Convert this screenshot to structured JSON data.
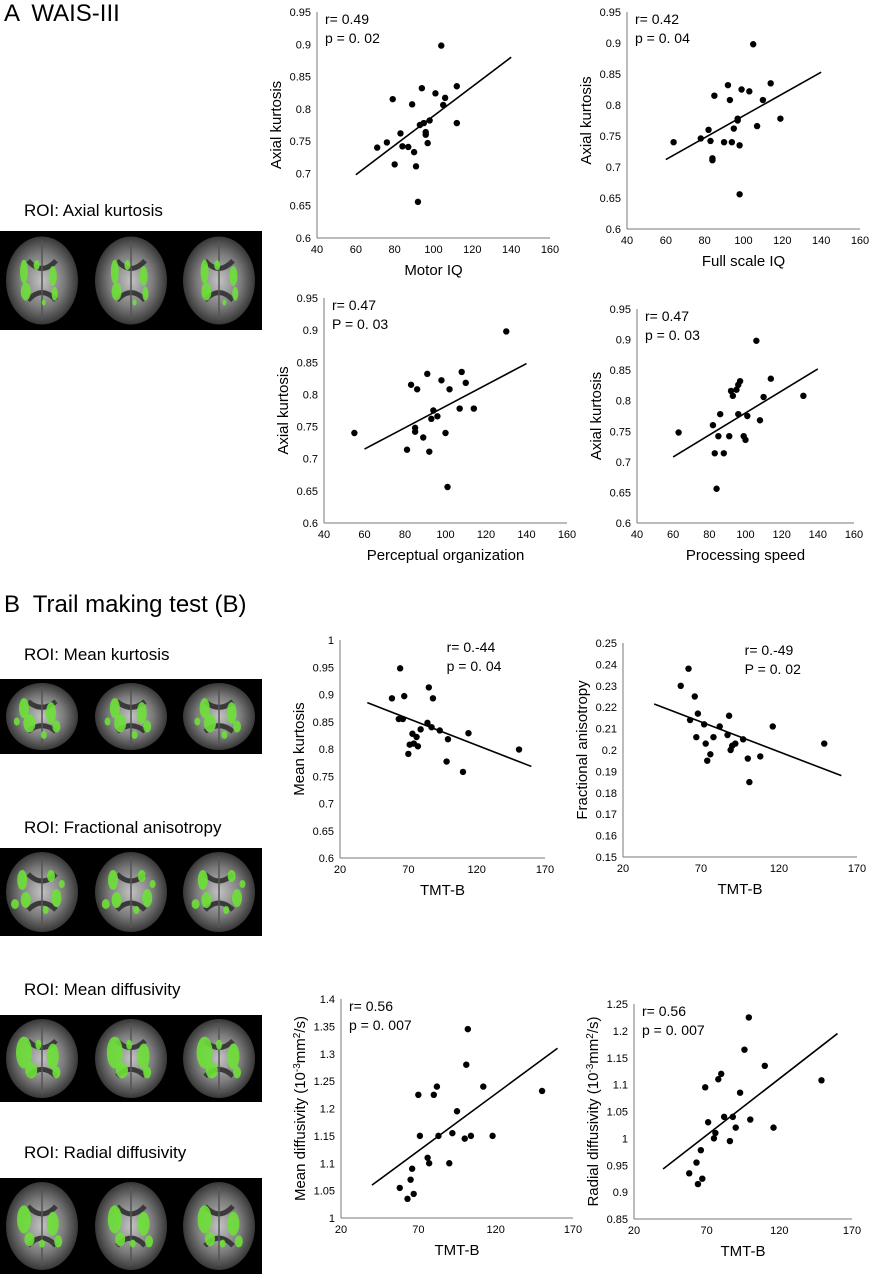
{
  "sections": {
    "a": {
      "letter": "A",
      "title": "WAIS-III"
    },
    "b": {
      "letter": "B",
      "title": "Trail making test (B)"
    }
  },
  "roi_labels": {
    "axial_kurtosis": "ROI: Axial kurtosis",
    "mean_kurtosis": "ROI: Mean kurtosis",
    "fractional_anisotropy": "ROI: Fractional anisotropy",
    "mean_diffusivity": "ROI: Mean diffusivity",
    "radial_diffusivity": "ROI: Radial diffusivity"
  },
  "colors": {
    "point": "#000000",
    "line": "#000000",
    "roi_overlay": "#6ee03a",
    "brain_background": "#000000"
  },
  "chart_data": [
    {
      "id": "motor_iq",
      "type": "scatter",
      "xlabel": "Motor IQ",
      "ylabel": "Axial kurtosis",
      "stat_r": "r= 0.49",
      "stat_p": "p = 0. 02",
      "xlim": [
        40,
        160
      ],
      "ylim": [
        0.6,
        0.95
      ],
      "xticks": [
        40,
        60,
        80,
        100,
        120,
        140,
        160
      ],
      "yticks": [
        0.6,
        0.65,
        0.7,
        0.75,
        0.8,
        0.85,
        0.9,
        0.95
      ],
      "trendline": [
        [
          60,
          0.698
        ],
        [
          140,
          0.88
        ]
      ],
      "points": [
        [
          71,
          0.74
        ],
        [
          76,
          0.748
        ],
        [
          79,
          0.815
        ],
        [
          80,
          0.714
        ],
        [
          83,
          0.762
        ],
        [
          84,
          0.742
        ],
        [
          87,
          0.741
        ],
        [
          89,
          0.807
        ],
        [
          90,
          0.733
        ],
        [
          91,
          0.711
        ],
        [
          92,
          0.656
        ],
        [
          93,
          0.775
        ],
        [
          94,
          0.832
        ],
        [
          95,
          0.778
        ],
        [
          96,
          0.76
        ],
        [
          96,
          0.764
        ],
        [
          97,
          0.747
        ],
        [
          98,
          0.782
        ],
        [
          101,
          0.824
        ],
        [
          104,
          0.898
        ],
        [
          105,
          0.806
        ],
        [
          106,
          0.817
        ],
        [
          112,
          0.835
        ],
        [
          112,
          0.778
        ]
      ]
    },
    {
      "id": "full_scale_iq",
      "type": "scatter",
      "xlabel": "Full scale IQ",
      "ylabel": "Axial kurtosis",
      "stat_r": "r= 0.42",
      "stat_p": "p = 0. 04",
      "xlim": [
        40,
        160
      ],
      "ylim": [
        0.6,
        0.95
      ],
      "xticks": [
        40,
        60,
        80,
        100,
        120,
        140,
        160
      ],
      "yticks": [
        0.6,
        0.65,
        0.7,
        0.75,
        0.8,
        0.85,
        0.9,
        0.95
      ],
      "trendline": [
        [
          60,
          0.712
        ],
        [
          140,
          0.853
        ]
      ],
      "points": [
        [
          64,
          0.74
        ],
        [
          78,
          0.746
        ],
        [
          82,
          0.76
        ],
        [
          83,
          0.742
        ],
        [
          84,
          0.714
        ],
        [
          84,
          0.711
        ],
        [
          85,
          0.815
        ],
        [
          90,
          0.74
        ],
        [
          92,
          0.832
        ],
        [
          93,
          0.808
        ],
        [
          94,
          0.74
        ],
        [
          95,
          0.762
        ],
        [
          97,
          0.775
        ],
        [
          97,
          0.778
        ],
        [
          98,
          0.656
        ],
        [
          98,
          0.735
        ],
        [
          99,
          0.825
        ],
        [
          103,
          0.822
        ],
        [
          105,
          0.898
        ],
        [
          107,
          0.766
        ],
        [
          110,
          0.808
        ],
        [
          114,
          0.835
        ],
        [
          119,
          0.778
        ]
      ]
    },
    {
      "id": "perceptual_organization",
      "type": "scatter",
      "xlabel": "Perceptual organization",
      "ylabel": "Axial kurtosis",
      "stat_r": "r= 0.47",
      "stat_p": "P = 0. 03",
      "xlim": [
        40,
        160
      ],
      "ylim": [
        0.6,
        0.95
      ],
      "xticks": [
        40,
        60,
        80,
        100,
        120,
        140,
        160
      ],
      "yticks": [
        0.6,
        0.65,
        0.7,
        0.75,
        0.8,
        0.85,
        0.9,
        0.95
      ],
      "trendline": [
        [
          60,
          0.715
        ],
        [
          140,
          0.848
        ]
      ],
      "points": [
        [
          55,
          0.74
        ],
        [
          81,
          0.714
        ],
        [
          83,
          0.815
        ],
        [
          85,
          0.748
        ],
        [
          85,
          0.742
        ],
        [
          86,
          0.808
        ],
        [
          89,
          0.733
        ],
        [
          91,
          0.832
        ],
        [
          92,
          0.711
        ],
        [
          93,
          0.762
        ],
        [
          94,
          0.775
        ],
        [
          96,
          0.766
        ],
        [
          98,
          0.822
        ],
        [
          100,
          0.74
        ],
        [
          101,
          0.656
        ],
        [
          102,
          0.808
        ],
        [
          107,
          0.778
        ],
        [
          108,
          0.835
        ],
        [
          110,
          0.818
        ],
        [
          114,
          0.778
        ],
        [
          130,
          0.898
        ]
      ]
    },
    {
      "id": "processing_speed",
      "type": "scatter",
      "xlabel": "Processing speed",
      "ylabel": "Axial kurtosis",
      "stat_r": "r= 0.47",
      "stat_p": "p = 0. 03",
      "xlim": [
        40,
        160
      ],
      "ylim": [
        0.6,
        0.95
      ],
      "xticks": [
        40,
        60,
        80,
        100,
        120,
        140,
        160
      ],
      "yticks": [
        0.6,
        0.65,
        0.7,
        0.75,
        0.8,
        0.85,
        0.9,
        0.95
      ],
      "trendline": [
        [
          60,
          0.708
        ],
        [
          140,
          0.852
        ]
      ],
      "points": [
        [
          63,
          0.748
        ],
        [
          82,
          0.76
        ],
        [
          83,
          0.714
        ],
        [
          84,
          0.656
        ],
        [
          85,
          0.742
        ],
        [
          86,
          0.778
        ],
        [
          88,
          0.714
        ],
        [
          91,
          0.742
        ],
        [
          92,
          0.816
        ],
        [
          93,
          0.808
        ],
        [
          95,
          0.818
        ],
        [
          96,
          0.826
        ],
        [
          96,
          0.778
        ],
        [
          97,
          0.832
        ],
        [
          99,
          0.742
        ],
        [
          100,
          0.736
        ],
        [
          101,
          0.775
        ],
        [
          106,
          0.898
        ],
        [
          108,
          0.768
        ],
        [
          110,
          0.806
        ],
        [
          114,
          0.836
        ],
        [
          132,
          0.808
        ]
      ]
    },
    {
      "id": "tmt_mk",
      "type": "scatter",
      "xlabel": "TMT-B",
      "ylabel": "Mean kurtosis",
      "stat_r": "r= 0.-44",
      "stat_p": "p = 0. 04",
      "xlim": [
        20,
        170
      ],
      "ylim": [
        0.6,
        1.0
      ],
      "xticks": [
        20,
        70,
        120,
        170
      ],
      "yticks": [
        0.6,
        0.65,
        0.7,
        0.75,
        0.8,
        0.85,
        0.9,
        0.95,
        1
      ],
      "trendline": [
        [
          40,
          0.885
        ],
        [
          160,
          0.768
        ]
      ],
      "points": [
        [
          58,
          0.893
        ],
        [
          63,
          0.855
        ],
        [
          64,
          0.948
        ],
        [
          66,
          0.855
        ],
        [
          67,
          0.897
        ],
        [
          70,
          0.791
        ],
        [
          71,
          0.808
        ],
        [
          73,
          0.828
        ],
        [
          74,
          0.81
        ],
        [
          76,
          0.822
        ],
        [
          77,
          0.805
        ],
        [
          79,
          0.836
        ],
        [
          84,
          0.848
        ],
        [
          85,
          0.913
        ],
        [
          87,
          0.84
        ],
        [
          88,
          0.893
        ],
        [
          93,
          0.834
        ],
        [
          98,
          0.777
        ],
        [
          99,
          0.818
        ],
        [
          110,
          0.758
        ],
        [
          114,
          0.829
        ],
        [
          151,
          0.799
        ]
      ]
    },
    {
      "id": "tmt_fa",
      "type": "scatter",
      "xlabel": "TMT-B",
      "ylabel": "Fractional anisotropy",
      "stat_r": "r= 0.-49",
      "stat_p": "P = 0. 02",
      "xlim": [
        20,
        170
      ],
      "ylim": [
        0.15,
        0.25
      ],
      "xticks": [
        20,
        70,
        120,
        170
      ],
      "yticks": [
        0.15,
        0.16,
        0.17,
        0.18,
        0.19,
        0.2,
        0.21,
        0.22,
        0.23,
        0.24,
        0.25
      ],
      "trendline": [
        [
          40,
          0.2215
        ],
        [
          160,
          0.188
        ]
      ],
      "points": [
        [
          57,
          0.23
        ],
        [
          62,
          0.238
        ],
        [
          63,
          0.214
        ],
        [
          66,
          0.225
        ],
        [
          67,
          0.206
        ],
        [
          68,
          0.217
        ],
        [
          72,
          0.212
        ],
        [
          73,
          0.203
        ],
        [
          74,
          0.195
        ],
        [
          76,
          0.198
        ],
        [
          78,
          0.206
        ],
        [
          82,
          0.211
        ],
        [
          87,
          0.207
        ],
        [
          88,
          0.216
        ],
        [
          89,
          0.2
        ],
        [
          90,
          0.202
        ],
        [
          92,
          0.203
        ],
        [
          97,
          0.205
        ],
        [
          100,
          0.196
        ],
        [
          101,
          0.185
        ],
        [
          108,
          0.197
        ],
        [
          116,
          0.211
        ],
        [
          149,
          0.203
        ]
      ]
    },
    {
      "id": "tmt_md",
      "type": "scatter",
      "xlabel": "TMT-B",
      "ylabel": "Mean diffusivity (10-3mm2/s)",
      "stat_r": "r= 0.56",
      "stat_p": "p = 0. 007",
      "xlim": [
        20,
        170
      ],
      "ylim": [
        1.0,
        1.4
      ],
      "xticks": [
        20,
        70,
        120,
        170
      ],
      "yticks": [
        1,
        1.05,
        1.1,
        1.15,
        1.2,
        1.25,
        1.3,
        1.35,
        1.4
      ],
      "trendline": [
        [
          40,
          1.06
        ],
        [
          160,
          1.31
        ]
      ],
      "points": [
        [
          58,
          1.055
        ],
        [
          63,
          1.035
        ],
        [
          65,
          1.07
        ],
        [
          66,
          1.09
        ],
        [
          67,
          1.044
        ],
        [
          70,
          1.225
        ],
        [
          71,
          1.15
        ],
        [
          76,
          1.11
        ],
        [
          77,
          1.1
        ],
        [
          80,
          1.225
        ],
        [
          82,
          1.24
        ],
        [
          83,
          1.15
        ],
        [
          90,
          1.1
        ],
        [
          92,
          1.155
        ],
        [
          95,
          1.195
        ],
        [
          100,
          1.145
        ],
        [
          101,
          1.28
        ],
        [
          102,
          1.345
        ],
        [
          104,
          1.15
        ],
        [
          112,
          1.24
        ],
        [
          118,
          1.15
        ],
        [
          150,
          1.232
        ]
      ]
    },
    {
      "id": "tmt_rd",
      "type": "scatter",
      "xlabel": "TMT-B",
      "ylabel": "Radial diffusivity (10-3mm2/s)",
      "stat_r": "r= 0.56",
      "stat_p": "p = 0. 007",
      "xlim": [
        20,
        170
      ],
      "ylim": [
        0.85,
        1.25
      ],
      "xticks": [
        20,
        70,
        120,
        170
      ],
      "yticks": [
        0.85,
        0.9,
        0.95,
        1,
        1.05,
        1.1,
        1.15,
        1.2,
        1.25
      ],
      "trendline": [
        [
          40,
          0.943
        ],
        [
          160,
          1.195
        ]
      ],
      "points": [
        [
          58,
          0.935
        ],
        [
          63,
          0.955
        ],
        [
          64,
          0.915
        ],
        [
          66,
          0.978
        ],
        [
          67,
          0.925
        ],
        [
          69,
          1.095
        ],
        [
          71,
          1.03
        ],
        [
          75,
          1.0
        ],
        [
          76,
          1.01
        ],
        [
          78,
          1.11
        ],
        [
          80,
          1.12
        ],
        [
          82,
          1.04
        ],
        [
          86,
          0.995
        ],
        [
          88,
          1.04
        ],
        [
          90,
          1.02
        ],
        [
          93,
          1.085
        ],
        [
          96,
          1.165
        ],
        [
          99,
          1.225
        ],
        [
          100,
          1.035
        ],
        [
          110,
          1.135
        ],
        [
          116,
          1.02
        ],
        [
          149,
          1.108
        ]
      ]
    }
  ]
}
